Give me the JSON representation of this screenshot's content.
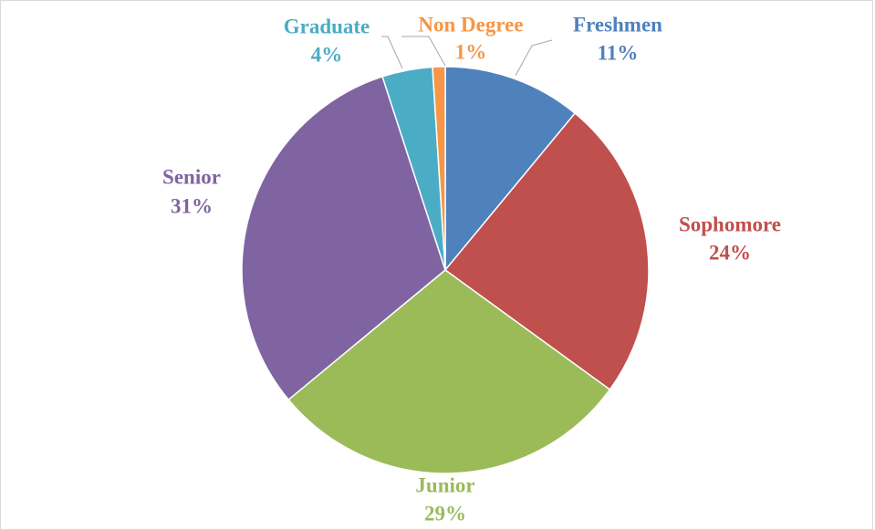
{
  "chart_data": {
    "type": "pie",
    "categories": [
      "Freshmen",
      "Sophomore",
      "Junior",
      "Senior",
      "Graduate",
      "Non Degree"
    ],
    "values": [
      11,
      24,
      29,
      31,
      4,
      1
    ],
    "value_labels": [
      "11%",
      "24%",
      "29%",
      "31%",
      "4%",
      "1%"
    ],
    "colors": [
      "#4f81bd",
      "#c0504d",
      "#9bbb59",
      "#8064a2",
      "#4bacc6",
      "#f79646"
    ]
  }
}
